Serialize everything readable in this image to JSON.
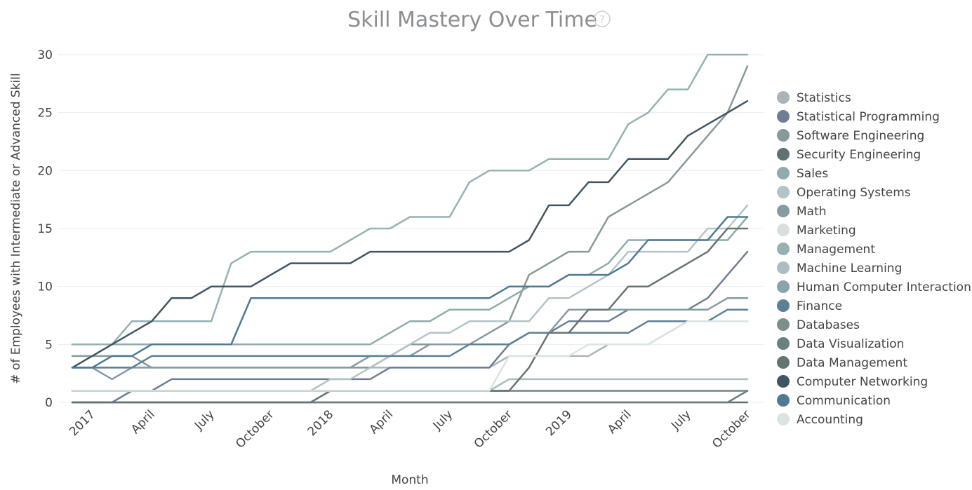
{
  "chart_data": {
    "type": "line",
    "title": "Skill Mastery Over Time",
    "help_icon": "question-circle-icon",
    "help_symbol": "?",
    "xlabel": "Month",
    "ylabel": "# of Employees with Intermediate or Advanced Skill",
    "ylim": [
      0,
      30
    ],
    "y_ticks": [
      0,
      5,
      10,
      15,
      20,
      25,
      30
    ],
    "grid": true,
    "legend_position": "right",
    "x_dates": [
      "2016-12",
      "2017-01",
      "2017-02",
      "2017-03",
      "2017-04",
      "2017-05",
      "2017-06",
      "2017-07",
      "2017-08",
      "2017-09",
      "2017-10",
      "2017-11",
      "2017-12",
      "2018-01",
      "2018-02",
      "2018-03",
      "2018-04",
      "2018-05",
      "2018-06",
      "2018-07",
      "2018-08",
      "2018-09",
      "2018-10",
      "2018-11",
      "2018-12",
      "2019-01",
      "2019-02",
      "2019-03",
      "2019-04",
      "2019-05",
      "2019-06",
      "2019-07",
      "2019-08",
      "2019-09",
      "2019-10"
    ],
    "x_ticks": [
      {
        "label": "2017",
        "date": "2017-01"
      },
      {
        "label": "April",
        "date": "2017-04"
      },
      {
        "label": "July",
        "date": "2017-07"
      },
      {
        "label": "October",
        "date": "2017-10"
      },
      {
        "label": "2018",
        "date": "2018-01"
      },
      {
        "label": "April",
        "date": "2018-04"
      },
      {
        "label": "July",
        "date": "2018-07"
      },
      {
        "label": "October",
        "date": "2018-10"
      },
      {
        "label": "2019",
        "date": "2019-01"
      },
      {
        "label": "April",
        "date": "2019-04"
      },
      {
        "label": "July",
        "date": "2019-07"
      },
      {
        "label": "October",
        "date": "2019-10"
      }
    ],
    "series": [
      {
        "name": "Statistics",
        "color": "#a9b5ba",
        "values": [
          3,
          3,
          3,
          3,
          3,
          3,
          3,
          3,
          3,
          3,
          3,
          3,
          3,
          3,
          3,
          3,
          3,
          3,
          3,
          3,
          3,
          3,
          4,
          4,
          4,
          4,
          4,
          5,
          5,
          5,
          6,
          7,
          7,
          7,
          7
        ]
      },
      {
        "name": "Statistical Programming",
        "color": "#6e7f93",
        "values": [
          0,
          0,
          0,
          1,
          1,
          2,
          2,
          2,
          2,
          2,
          2,
          2,
          2,
          2,
          2,
          2,
          3,
          3,
          3,
          3,
          3,
          3,
          5,
          6,
          6,
          7,
          7,
          7,
          8,
          8,
          8,
          8,
          9,
          11,
          13
        ]
      },
      {
        "name": "Software Engineering",
        "color": "#87999b",
        "values": [
          4,
          4,
          4,
          4,
          3,
          3,
          3,
          3,
          3,
          3,
          3,
          3,
          3,
          3,
          3,
          3,
          4,
          5,
          5,
          5,
          5,
          6,
          7,
          11,
          12,
          13,
          13,
          16,
          17,
          18,
          19,
          21,
          23,
          25,
          29
        ]
      },
      {
        "name": "Security Engineering",
        "color": "#5e7274",
        "values": [
          0,
          0,
          0,
          0,
          0,
          0,
          0,
          0,
          0,
          0,
          0,
          0,
          0,
          0,
          0,
          0,
          0,
          0,
          0,
          0,
          0,
          0,
          0,
          0,
          0,
          0,
          0,
          0,
          0,
          0,
          0,
          0,
          0,
          0,
          0
        ]
      },
      {
        "name": "Sales",
        "color": "#8fabad",
        "values": [
          5,
          5,
          5,
          5,
          5,
          5,
          5,
          5,
          5,
          5,
          5,
          5,
          5,
          5,
          5,
          5,
          6,
          7,
          7,
          8,
          8,
          8,
          9,
          10,
          10,
          11,
          11,
          12,
          14,
          14,
          14,
          14,
          14,
          14,
          16
        ]
      },
      {
        "name": "Operating Systems",
        "color": "#b3c3c8",
        "values": [
          1,
          1,
          1,
          1,
          1,
          1,
          1,
          1,
          1,
          1,
          1,
          1,
          1,
          2,
          2,
          3,
          4,
          5,
          6,
          6,
          7,
          7,
          7,
          7,
          9,
          9,
          10,
          11,
          13,
          13,
          13,
          13,
          15,
          15,
          17
        ]
      },
      {
        "name": "Math",
        "color": "#859ba3",
        "values": [
          3,
          3,
          2,
          3,
          3,
          3,
          3,
          3,
          3,
          3,
          3,
          3,
          3,
          3,
          3,
          4,
          4,
          4,
          5,
          5,
          5,
          5,
          5,
          6,
          6,
          8,
          8,
          8,
          8,
          8,
          8,
          8,
          8,
          9,
          9
        ]
      },
      {
        "name": "Marketing",
        "color": "#d9dfe0",
        "values": [
          1,
          1,
          1,
          1,
          1,
          1,
          1,
          1,
          1,
          1,
          1,
          1,
          1,
          1,
          1,
          1,
          1,
          1,
          1,
          1,
          1,
          1,
          2,
          2,
          2,
          2,
          2,
          2,
          2,
          2,
          2,
          2,
          2,
          2,
          2
        ]
      },
      {
        "name": "Management",
        "color": "#95b2b3",
        "values": [
          5,
          5,
          5,
          7,
          7,
          7,
          7,
          7,
          12,
          13,
          13,
          13,
          13,
          13,
          14,
          15,
          15,
          16,
          16,
          16,
          19,
          20,
          20,
          20,
          21,
          21,
          21,
          21,
          24,
          25,
          27,
          27,
          30,
          30,
          30
        ]
      },
      {
        "name": "Machine Learning",
        "color": "#a9bfc1",
        "values": [
          1,
          1,
          1,
          1,
          1,
          1,
          1,
          1,
          1,
          1,
          1,
          1,
          1,
          1,
          1,
          1,
          1,
          1,
          1,
          1,
          1,
          1,
          2,
          2,
          2,
          2,
          2,
          2,
          2,
          2,
          2,
          2,
          2,
          2,
          2
        ]
      },
      {
        "name": "Human Computer Interaction",
        "color": "#8aa3ad",
        "values": [
          1,
          1,
          1,
          1,
          1,
          1,
          1,
          1,
          1,
          1,
          1,
          1,
          1,
          1,
          1,
          1,
          1,
          1,
          1,
          1,
          1,
          1,
          1,
          1,
          1,
          1,
          1,
          1,
          1,
          1,
          1,
          1,
          1,
          1,
          1
        ]
      },
      {
        "name": "Finance",
        "color": "#5c8196",
        "values": [
          3,
          3,
          3,
          3,
          4,
          4,
          4,
          4,
          4,
          4,
          4,
          4,
          4,
          4,
          4,
          4,
          4,
          4,
          4,
          4,
          5,
          5,
          5,
          6,
          6,
          6,
          6,
          6,
          6,
          7,
          7,
          7,
          7,
          8,
          8
        ]
      },
      {
        "name": "Databases",
        "color": "#7b8f8e",
        "values": [
          1,
          1,
          1,
          1,
          1,
          1,
          1,
          1,
          1,
          1,
          1,
          1,
          1,
          1,
          1,
          1,
          1,
          1,
          1,
          1,
          1,
          1,
          1,
          1,
          1,
          1,
          1,
          1,
          1,
          1,
          1,
          1,
          1,
          1,
          1
        ]
      },
      {
        "name": "Data Visualization",
        "color": "#68807f",
        "values": [
          0,
          0,
          0,
          0,
          0,
          0,
          0,
          0,
          0,
          0,
          0,
          0,
          0,
          0,
          0,
          0,
          0,
          0,
          0,
          0,
          0,
          0,
          0,
          0,
          0,
          0,
          0,
          0,
          0,
          0,
          0,
          0,
          0,
          0,
          1
        ]
      },
      {
        "name": "Data Management",
        "color": "#647474",
        "values": [
          0,
          0,
          0,
          0,
          0,
          0,
          0,
          0,
          0,
          0,
          0,
          0,
          0,
          1,
          1,
          1,
          1,
          1,
          1,
          1,
          1,
          1,
          1,
          3,
          6,
          6,
          8,
          8,
          10,
          10,
          11,
          12,
          13,
          15,
          15
        ]
      },
      {
        "name": "Computer Networking",
        "color": "#3f5662",
        "values": [
          3,
          4,
          5,
          6,
          7,
          9,
          9,
          10,
          10,
          10,
          11,
          12,
          12,
          12,
          12,
          13,
          13,
          13,
          13,
          13,
          13,
          13,
          13,
          14,
          17,
          17,
          19,
          19,
          21,
          21,
          21,
          23,
          24,
          25,
          26
        ]
      },
      {
        "name": "Communication",
        "color": "#4e7a93",
        "values": [
          3,
          3,
          4,
          4,
          5,
          5,
          5,
          5,
          5,
          9,
          9,
          9,
          9,
          9,
          9,
          9,
          9,
          9,
          9,
          9,
          9,
          9,
          10,
          10,
          10,
          11,
          11,
          11,
          12,
          14,
          14,
          14,
          14,
          16,
          16
        ]
      },
      {
        "name": "Accounting",
        "color": "#dbe3e5",
        "values": [
          1,
          1,
          1,
          1,
          1,
          1,
          1,
          1,
          1,
          1,
          1,
          1,
          1,
          1,
          1,
          1,
          1,
          1,
          1,
          1,
          1,
          1,
          4,
          4,
          4,
          4,
          5,
          5,
          5,
          5,
          6,
          7,
          7,
          7,
          7
        ]
      }
    ]
  }
}
